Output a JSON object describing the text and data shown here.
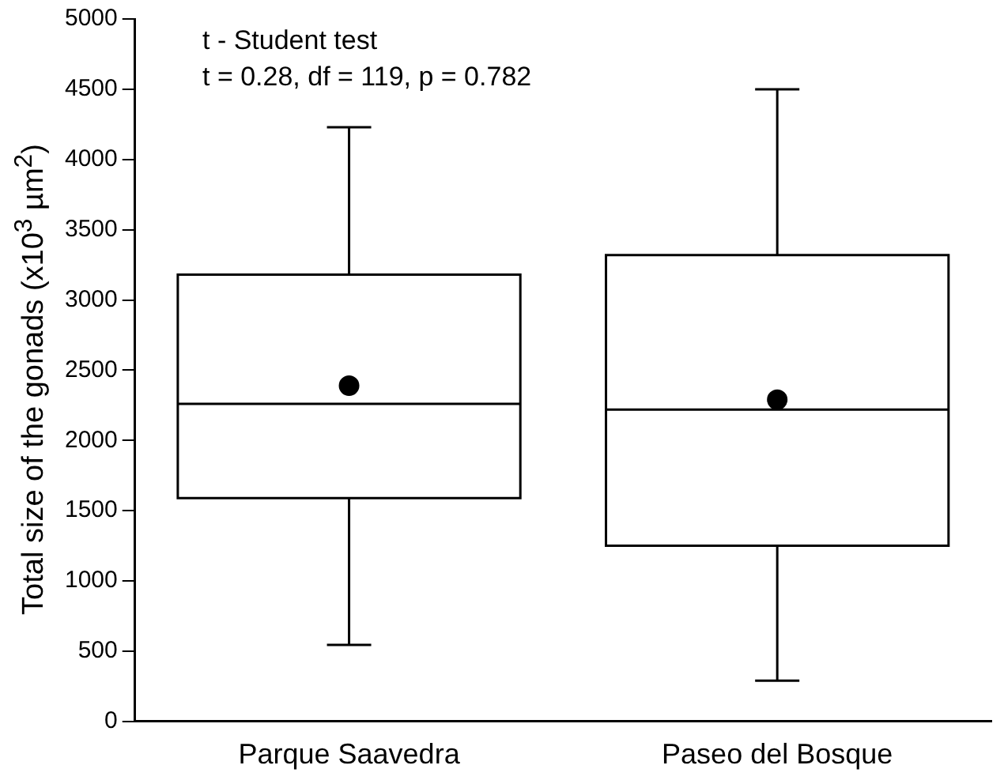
{
  "chart_data": {
    "type": "box",
    "ylabel": "Total size of the gonads (x10$^{3}$ µm$^{2}$)",
    "annotations": [
      "t - Student test",
      "t = 0.28, df = 119, p = 0.782"
    ],
    "categories": [
      "Parque Saavedra",
      "Paseo del Bosque"
    ],
    "boxes": [
      {
        "low": 545,
        "q1": 1590,
        "median": 2260,
        "q3": 3180,
        "high": 4230,
        "mean": 2390
      },
      {
        "low": 290,
        "q1": 1250,
        "median": 2220,
        "q3": 3320,
        "high": 4500,
        "mean": 2290
      }
    ],
    "ylim": [
      0,
      5000
    ],
    "yticks": [
      0,
      500,
      1000,
      1500,
      2000,
      2500,
      3000,
      3500,
      4000,
      4500,
      5000
    ],
    "grid": false,
    "legend": false,
    "marker": "circle",
    "color": "#000000"
  }
}
